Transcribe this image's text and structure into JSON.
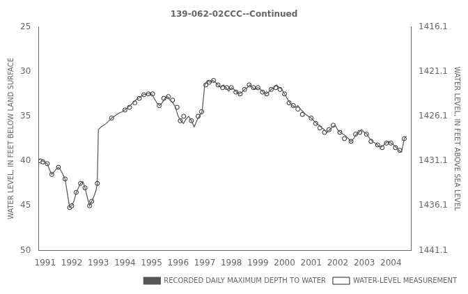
{
  "chart_data": {
    "type": "line",
    "title": "139-062-02CCC--Continued",
    "ylabel": "WATER LEVEL, IN FEET BELOW LAND SURFACE",
    "y2label": "WATER LEVEL, IN FEET ABOVE SEA LEVEL",
    "xlim": [
      1990.75,
      2004.75
    ],
    "xticks": [
      1991,
      1992,
      1993,
      1994,
      1995,
      1996,
      1997,
      1998,
      1999,
      2000,
      2001,
      2002,
      2003,
      2004
    ],
    "ylim": [
      50,
      25
    ],
    "yticks": [
      25,
      30,
      35,
      40,
      45,
      50
    ],
    "y2lim": [
      1441.1,
      1416.1
    ],
    "y2ticks": [
      1416.1,
      1421.1,
      1426.1,
      1431.1,
      1436.1,
      1441.1
    ],
    "grid": false,
    "legend": "lower right",
    "series": [
      {
        "name": "RECORDED DAILY MAXIMUM DEPTH TO WATER",
        "type": "line",
        "color": "#555555",
        "x": [
          1990.83,
          1990.87,
          1990.92,
          1990.97,
          1991.0,
          1991.08,
          1991.17,
          1991.25,
          1991.33,
          1991.42,
          1991.5,
          1991.58,
          1991.67,
          1991.75,
          1991.83,
          1991.92,
          1992.0,
          1992.08,
          1992.17,
          1992.25,
          1992.33,
          1992.42,
          1992.5,
          1992.58,
          1992.67,
          1992.75,
          1992.83,
          1992.92,
          1992.96,
          1993.0,
          1993.1,
          1993.2,
          1993.3,
          1993.4,
          1993.5,
          1993.6,
          1993.7,
          1993.8,
          1993.9,
          1994.0,
          1994.1,
          1994.2,
          1994.3,
          1994.4,
          1994.5,
          1994.6,
          1994.7,
          1994.8,
          1994.9,
          1995.0,
          1995.1,
          1995.2,
          1995.3,
          1995.4,
          1995.5,
          1995.6,
          1995.7,
          1995.8,
          1995.9,
          1996.0,
          1996.1,
          1996.2,
          1996.3,
          1996.4,
          1996.5,
          1996.6,
          1996.7,
          1996.8,
          1996.9,
          1997.0,
          1997.1,
          1997.2,
          1997.3,
          1997.4,
          1997.5,
          1997.6,
          1997.7,
          1997.8,
          1997.9,
          1998.0,
          1998.1,
          1998.2,
          1998.3,
          1998.4,
          1998.5,
          1998.6,
          1998.7,
          1998.8,
          1998.9,
          1999.0,
          1999.1,
          1999.2,
          1999.3,
          1999.4,
          1999.5,
          1999.6,
          1999.7,
          1999.8,
          1999.9,
          2000.0,
          2000.1,
          2000.2,
          2000.3,
          2000.4,
          2000.5,
          2000.6,
          2000.7,
          2000.8,
          2000.9,
          2001.0,
          2001.1,
          2001.2,
          2001.3,
          2001.4,
          2001.5,
          2001.6,
          2001.7,
          2001.8,
          2001.9,
          2002.0,
          2002.1,
          2002.2,
          2002.3,
          2002.4,
          2002.5,
          2002.6,
          2002.7,
          2002.8,
          2002.9,
          2003.0,
          2003.1,
          2003.2,
          2003.3,
          2003.4,
          2003.5,
          2003.6,
          2003.7,
          2003.8,
          2003.9,
          2004.0,
          2004.1,
          2004.2,
          2004.3,
          2004.4,
          2004.5,
          2004.58
        ],
        "values": [
          40.0,
          40.0,
          40.0,
          40.1,
          40.2,
          40.3,
          41.0,
          41.5,
          41.2,
          40.9,
          40.7,
          41.0,
          41.5,
          42.0,
          43.5,
          45.2,
          45.0,
          44.5,
          43.5,
          43.0,
          42.5,
          42.3,
          43.0,
          44.0,
          45.0,
          44.5,
          44.0,
          43.2,
          42.5,
          36.5,
          36.2,
          36.0,
          35.8,
          35.5,
          35.2,
          35.0,
          34.8,
          34.6,
          34.5,
          34.3,
          34.0,
          33.8,
          33.5,
          33.2,
          33.0,
          32.8,
          32.6,
          32.5,
          32.5,
          32.5,
          33.0,
          33.5,
          33.8,
          33.5,
          33.0,
          32.8,
          33.2,
          33.5,
          34.0,
          35.0,
          35.5,
          35.8,
          35.3,
          35.0,
          35.5,
          36.2,
          35.5,
          35.0,
          34.5,
          31.5,
          31.0,
          31.2,
          31.0,
          31.2,
          31.5,
          31.8,
          31.5,
          31.8,
          32.2,
          31.8,
          32.0,
          32.3,
          32.5,
          32.3,
          32.0,
          31.8,
          31.5,
          31.8,
          32.0,
          31.8,
          32.0,
          32.3,
          32.5,
          32.3,
          32.0,
          31.8,
          31.5,
          31.8,
          32.0,
          32.5,
          33.0,
          33.5,
          33.8,
          34.0,
          33.8,
          34.2,
          34.5,
          34.8,
          35.0,
          35.2,
          35.5,
          35.8,
          36.0,
          36.3,
          36.5,
          36.8,
          36.5,
          36.2,
          36.0,
          36.5,
          36.8,
          37.0,
          37.2,
          37.5,
          37.8,
          37.5,
          37.0,
          36.8,
          36.5,
          36.8,
          37.0,
          37.5,
          37.8,
          38.0,
          38.2,
          38.5,
          38.3,
          38.0,
          37.8,
          38.0,
          38.2,
          38.5,
          38.8,
          39.0,
          37.5,
          37.2
        ]
      },
      {
        "name": "WATER-LEVEL MEASUREMENT",
        "type": "scatter",
        "color": "#222222",
        "marker": "o",
        "x": [
          1990.83,
          1990.92,
          1991.08,
          1991.25,
          1991.5,
          1991.75,
          1991.92,
          1992.0,
          1992.17,
          1992.33,
          1992.5,
          1992.67,
          1992.75,
          1992.96,
          1993.5,
          1994.0,
          1994.17,
          1994.37,
          1994.54,
          1994.71,
          1994.88,
          1995.04,
          1995.29,
          1995.46,
          1995.63,
          1995.79,
          1995.96,
          1996.08,
          1996.21,
          1996.5,
          1996.75,
          1996.88,
          1997.04,
          1997.17,
          1997.33,
          1997.5,
          1997.67,
          1997.83,
          1998.0,
          1998.17,
          1998.33,
          1998.5,
          1998.67,
          1998.83,
          1999.0,
          1999.17,
          1999.33,
          1999.5,
          1999.67,
          1999.83,
          2000.0,
          2000.17,
          2000.33,
          2000.5,
          2000.67,
          2001.0,
          2001.17,
          2001.33,
          2001.5,
          2001.67,
          2001.83,
          2002.08,
          2002.25,
          2002.5,
          2002.67,
          2002.83,
          2003.08,
          2003.25,
          2003.5,
          2003.67,
          2003.83,
          2004.0,
          2004.17,
          2004.33,
          2004.5
        ],
        "values": [
          40.0,
          40.1,
          40.3,
          41.5,
          40.7,
          42.0,
          45.2,
          45.0,
          43.5,
          42.5,
          43.0,
          45.0,
          44.5,
          42.5,
          35.2,
          34.3,
          34.0,
          33.5,
          33.0,
          32.6,
          32.5,
          32.5,
          33.8,
          33.0,
          32.8,
          33.2,
          34.0,
          35.5,
          35.0,
          35.5,
          35.0,
          34.5,
          31.5,
          31.2,
          31.0,
          31.5,
          31.8,
          31.8,
          31.8,
          32.3,
          32.5,
          32.0,
          31.5,
          31.8,
          31.8,
          32.3,
          32.5,
          32.0,
          31.8,
          32.0,
          32.5,
          33.5,
          33.8,
          34.2,
          34.8,
          35.2,
          35.8,
          36.3,
          36.8,
          36.5,
          36.0,
          36.8,
          37.5,
          37.8,
          37.0,
          36.8,
          37.0,
          37.8,
          38.2,
          38.5,
          38.0,
          38.0,
          38.5,
          38.8,
          37.5
        ]
      }
    ]
  }
}
